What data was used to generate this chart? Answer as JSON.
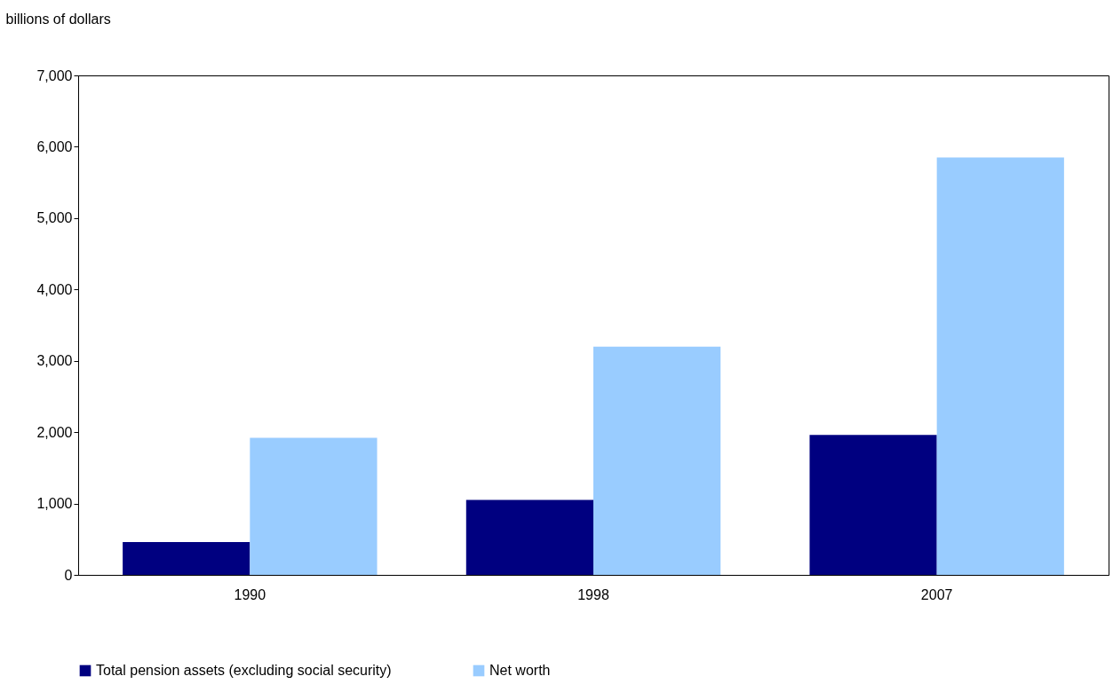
{
  "chart_data": {
    "type": "bar",
    "ylabel": "billions of dollars",
    "categories": [
      "1990",
      "1998",
      "2007"
    ],
    "series": [
      {
        "name": "Total pension assets (excluding social security)",
        "color": "#000080",
        "values": [
          460,
          1050,
          1960
        ]
      },
      {
        "name": "Net worth",
        "color": "#99ccff",
        "values": [
          1920,
          3200,
          5850
        ]
      }
    ],
    "ylim": [
      0,
      7000
    ],
    "yticks": [
      0,
      {
        "value": 1000,
        "label": "1,000"
      },
      {
        "value": 2000,
        "label": "2,000"
      },
      {
        "value": 3000,
        "label": "3,000"
      },
      {
        "value": 4000,
        "label": "4,000"
      },
      {
        "value": 5000,
        "label": "5,000"
      },
      {
        "value": 6000,
        "label": "6,000"
      },
      {
        "value": 7000,
        "label": "7,000"
      }
    ],
    "grid": false,
    "legend": "bottom"
  }
}
